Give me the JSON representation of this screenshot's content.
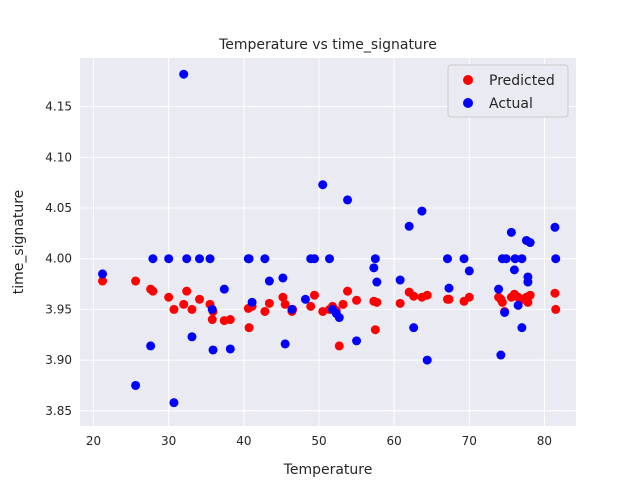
{
  "chart_data": {
    "type": "scatter",
    "title": "Temperature vs time_signature",
    "xlabel": "Temperature",
    "ylabel": "time_signature",
    "xlim": [
      18.2,
      84.2
    ],
    "ylim": [
      3.835,
      4.198
    ],
    "xticks": [
      20,
      30,
      40,
      50,
      60,
      70,
      80
    ],
    "yticks": [
      3.85,
      3.9,
      3.95,
      4.0,
      4.05,
      4.1,
      4.15
    ],
    "ytick_labels": [
      "3.85",
      "3.90",
      "3.95",
      "4.00",
      "4.05",
      "4.10",
      "4.15"
    ],
    "grid": true,
    "legend_position": "top-right",
    "series": [
      {
        "name": "Predicted",
        "color": "#ff0000",
        "points": [
          [
            21.2,
            3.978
          ],
          [
            25.6,
            3.978
          ],
          [
            27.6,
            3.97
          ],
          [
            27.9,
            3.968
          ],
          [
            30.0,
            3.962
          ],
          [
            30.7,
            3.95
          ],
          [
            32.0,
            3.955
          ],
          [
            32.4,
            3.968
          ],
          [
            33.1,
            3.95
          ],
          [
            34.1,
            3.96
          ],
          [
            35.5,
            3.955
          ],
          [
            35.8,
            3.94
          ],
          [
            35.9,
            3.948
          ],
          [
            37.4,
            3.939
          ],
          [
            38.2,
            3.94
          ],
          [
            40.6,
            3.951
          ],
          [
            40.7,
            3.932
          ],
          [
            41.1,
            3.953
          ],
          [
            42.8,
            3.948
          ],
          [
            43.4,
            3.956
          ],
          [
            45.2,
            3.962
          ],
          [
            45.5,
            3.955
          ],
          [
            46.4,
            3.948
          ],
          [
            46.5,
            3.95
          ],
          [
            48.9,
            3.953
          ],
          [
            49.4,
            3.964
          ],
          [
            50.5,
            3.948
          ],
          [
            51.4,
            3.95
          ],
          [
            51.8,
            3.953
          ],
          [
            52.3,
            3.949
          ],
          [
            52.7,
            3.914
          ],
          [
            53.2,
            3.955
          ],
          [
            53.8,
            3.968
          ],
          [
            55.0,
            3.959
          ],
          [
            57.3,
            3.958
          ],
          [
            57.5,
            3.93
          ],
          [
            57.7,
            3.957
          ],
          [
            60.8,
            3.956
          ],
          [
            62.0,
            3.967
          ],
          [
            62.6,
            3.963
          ],
          [
            63.7,
            3.962
          ],
          [
            64.4,
            3.964
          ],
          [
            67.1,
            3.96
          ],
          [
            67.3,
            3.96
          ],
          [
            69.3,
            3.958
          ],
          [
            70.0,
            3.962
          ],
          [
            73.9,
            3.962
          ],
          [
            74.2,
            3.96
          ],
          [
            74.4,
            3.957
          ],
          [
            74.7,
            3.948
          ],
          [
            75.6,
            3.962
          ],
          [
            76.0,
            3.965
          ],
          [
            76.5,
            3.962
          ],
          [
            77.0,
            3.96
          ],
          [
            77.6,
            3.962
          ],
          [
            77.8,
            3.957
          ],
          [
            78.1,
            3.964
          ],
          [
            81.4,
            3.966
          ],
          [
            81.5,
            3.95
          ]
        ]
      },
      {
        "name": "Actual",
        "color": "#0000ff",
        "points": [
          [
            21.2,
            3.985
          ],
          [
            25.6,
            3.875
          ],
          [
            27.6,
            3.914
          ],
          [
            27.9,
            4.0
          ],
          [
            30.0,
            4.0
          ],
          [
            30.7,
            3.858
          ],
          [
            32.0,
            4.182
          ],
          [
            32.4,
            4.0
          ],
          [
            33.1,
            3.923
          ],
          [
            34.1,
            4.0
          ],
          [
            35.5,
            4.0
          ],
          [
            35.8,
            3.95
          ],
          [
            35.9,
            3.91
          ],
          [
            37.4,
            3.97
          ],
          [
            38.2,
            3.911
          ],
          [
            40.6,
            4.0
          ],
          [
            40.7,
            4.0
          ],
          [
            41.1,
            3.957
          ],
          [
            42.8,
            4.0
          ],
          [
            43.4,
            3.978
          ],
          [
            45.2,
            3.981
          ],
          [
            45.5,
            3.916
          ],
          [
            46.4,
            3.95
          ],
          [
            48.2,
            3.96
          ],
          [
            48.9,
            4.0
          ],
          [
            49.4,
            4.0
          ],
          [
            50.5,
            4.073
          ],
          [
            51.4,
            4.0
          ],
          [
            51.8,
            3.95
          ],
          [
            52.3,
            3.946
          ],
          [
            52.7,
            3.942
          ],
          [
            53.8,
            4.058
          ],
          [
            55.0,
            3.919
          ],
          [
            57.3,
            3.991
          ],
          [
            57.5,
            4.0
          ],
          [
            57.7,
            3.977
          ],
          [
            60.8,
            3.979
          ],
          [
            62.0,
            4.032
          ],
          [
            62.6,
            3.932
          ],
          [
            63.7,
            4.047
          ],
          [
            64.4,
            3.9
          ],
          [
            67.1,
            4.0
          ],
          [
            67.3,
            3.971
          ],
          [
            69.3,
            4.0
          ],
          [
            70.0,
            3.988
          ],
          [
            73.9,
            3.97
          ],
          [
            74.2,
            3.905
          ],
          [
            74.4,
            4.0
          ],
          [
            74.7,
            3.947
          ],
          [
            74.9,
            4.0
          ],
          [
            75.6,
            4.026
          ],
          [
            76.0,
            3.989
          ],
          [
            76.1,
            4.0
          ],
          [
            76.5,
            3.954
          ],
          [
            77.0,
            3.932
          ],
          [
            77.0,
            4.0
          ],
          [
            77.6,
            4.018
          ],
          [
            77.8,
            3.982
          ],
          [
            77.8,
            3.977
          ],
          [
            78.1,
            4.016
          ],
          [
            81.4,
            4.031
          ],
          [
            81.5,
            4.0
          ]
        ]
      }
    ]
  }
}
